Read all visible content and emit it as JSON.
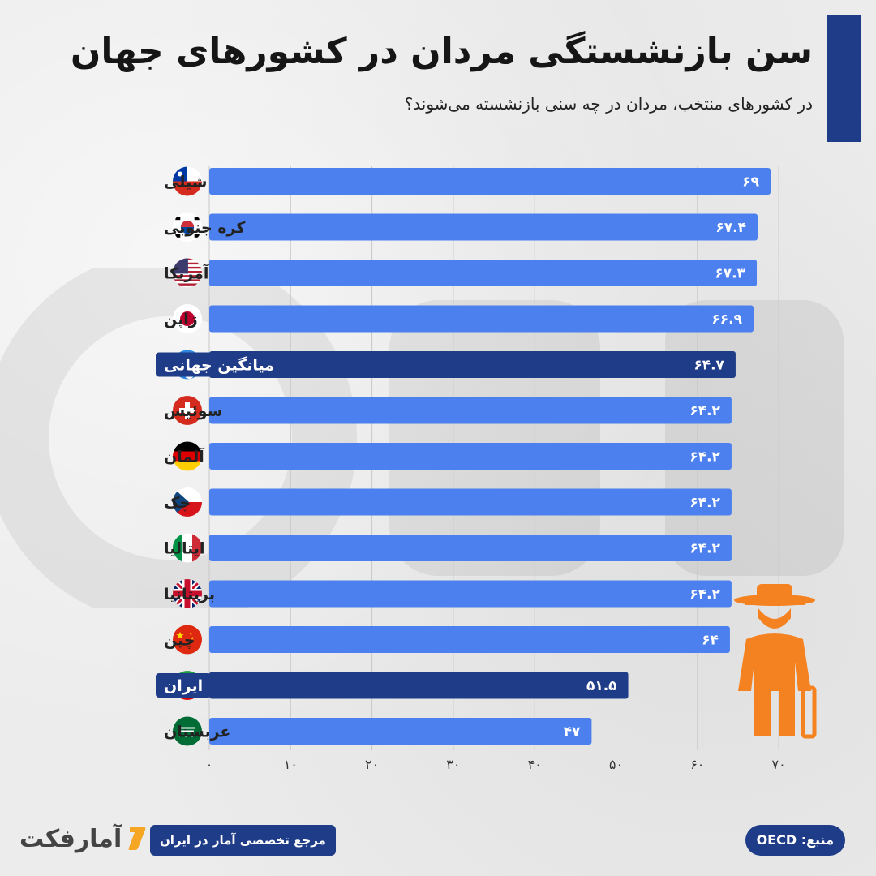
{
  "title": "سن بازنشستگی مردان در کشورهای جهان",
  "subtitle": "در کشورهای منتخب، مردان در چه سنی بازنشسته می‌شوند؟",
  "colors": {
    "bar": "#4b80ee",
    "highlight": "#1f3c88",
    "title_bar": "#1f3c88",
    "figure": "#f58220"
  },
  "chart_data": {
    "type": "bar",
    "orientation": "horizontal",
    "categories": [
      "شیلی",
      "کره جنوبی",
      "آمریکا",
      "ژاپن",
      "میانگین جهانی",
      "سوئیس",
      "آلمان",
      "چک",
      "ایتالیا",
      "بریتانیا",
      "چین",
      "ایران",
      "عربستان"
    ],
    "values": [
      69,
      67.4,
      67.3,
      66.9,
      64.7,
      64.2,
      64.2,
      64.2,
      64.2,
      64.2,
      64,
      51.5,
      47
    ],
    "value_labels": [
      "۶۹",
      "۶۷.۴",
      "۶۷.۳",
      "۶۶.۹",
      "۶۴.۷",
      "۶۴.۲",
      "۶۴.۲",
      "۶۴.۲",
      "۶۴.۲",
      "۶۴.۲",
      "۶۴",
      "۵۱.۵",
      "۴۷"
    ],
    "highlighted": [
      "میانگین جهانی",
      "ایران"
    ],
    "flags": [
      "flag-chile",
      "flag-south-korea",
      "flag-usa",
      "flag-japan",
      "flag-world-globe",
      "flag-switzerland",
      "flag-germany",
      "flag-czech",
      "flag-italy",
      "flag-uk",
      "flag-china",
      "flag-iran",
      "flag-saudi-arabia"
    ],
    "x_ticks": [
      0,
      10,
      20,
      30,
      40,
      50,
      60,
      70
    ],
    "x_tick_labels": [
      "۰",
      "۱۰",
      "۲۰",
      "۳۰",
      "۴۰",
      "۵۰",
      "۶۰",
      "۷۰"
    ],
    "xlim": [
      0,
      70
    ],
    "grid": true
  },
  "footer": {
    "tagline": "مرجع تخصصی آمار در ایران",
    "logo_text": "آمارفکت",
    "source": "منبع: OECD"
  }
}
